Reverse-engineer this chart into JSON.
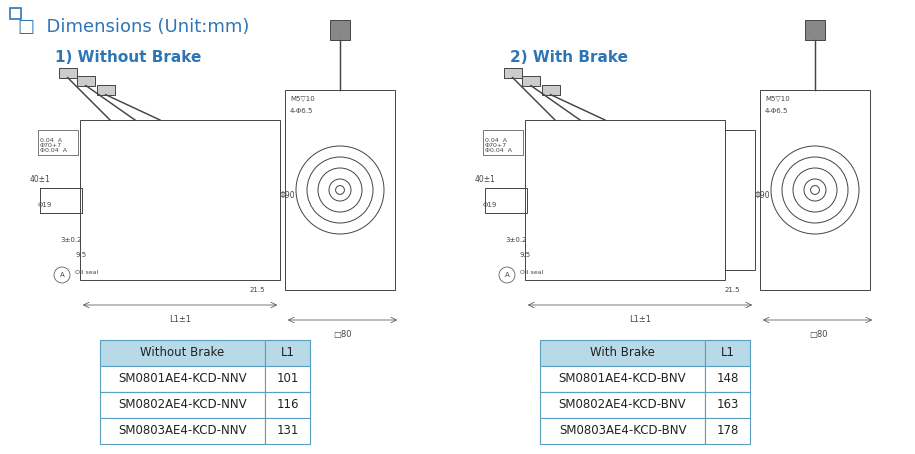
{
  "title": "□  Dimensions (Unit:mm)",
  "title_color": "#2e75b6",
  "title_fontsize": 13,
  "subtitle1": "1) Without Brake",
  "subtitle2": "2) With Brake",
  "subtitle_color": "#2e75b6",
  "subtitle_fontsize": 11,
  "bg_color": "#ffffff",
  "table1_header": [
    "Without Brake",
    "L1"
  ],
  "table1_rows": [
    [
      "SM0801AE4-KCD-NNV",
      "101"
    ],
    [
      "SM0802AE4-KCD-NNV",
      "116"
    ],
    [
      "SM0803AE4-KCD-NNV",
      "131"
    ]
  ],
  "table2_header": [
    "With Brake",
    "L1"
  ],
  "table2_rows": [
    [
      "SM0801AE4-KCD-BNV",
      "148"
    ],
    [
      "SM0802AE4-KCD-BNV",
      "163"
    ],
    [
      "SM0803AE4-KCD-BNV",
      "178"
    ]
  ],
  "table_header_bg": "#b8d9e8",
  "table_border_color": "#5a9fc0",
  "table_text_color": "#222222",
  "table_header_text_color": "#222222",
  "table_fontsize": 8.5,
  "table_header_fontsize": 8.5
}
